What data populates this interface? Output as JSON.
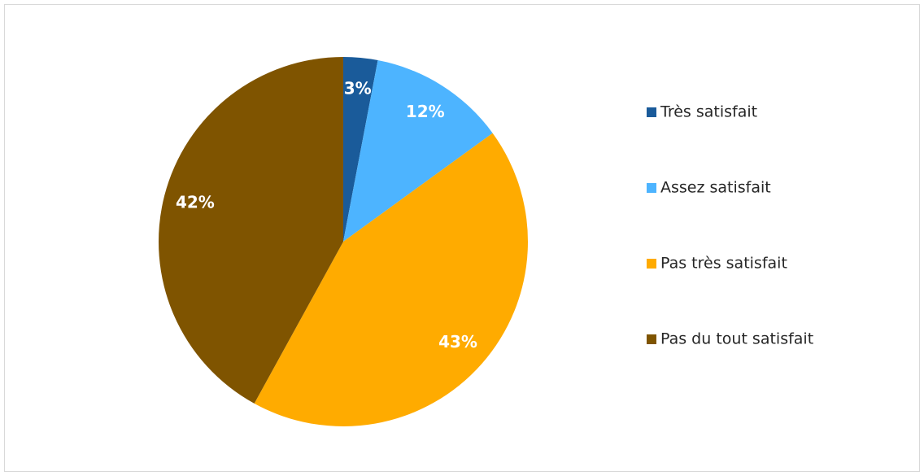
{
  "chart_data": {
    "type": "pie",
    "categories": [
      "Très satisfait",
      "Assez satisfait",
      "Pas très satisfait",
      "Pas du tout satisfait"
    ],
    "values": [
      3,
      12,
      43,
      42
    ],
    "value_labels": [
      "3%",
      "12%",
      "43%",
      "42%"
    ],
    "colors": [
      "#1a5b9a",
      "#4db4ff",
      "#ffab00",
      "#7f5400"
    ],
    "legend": "right"
  }
}
